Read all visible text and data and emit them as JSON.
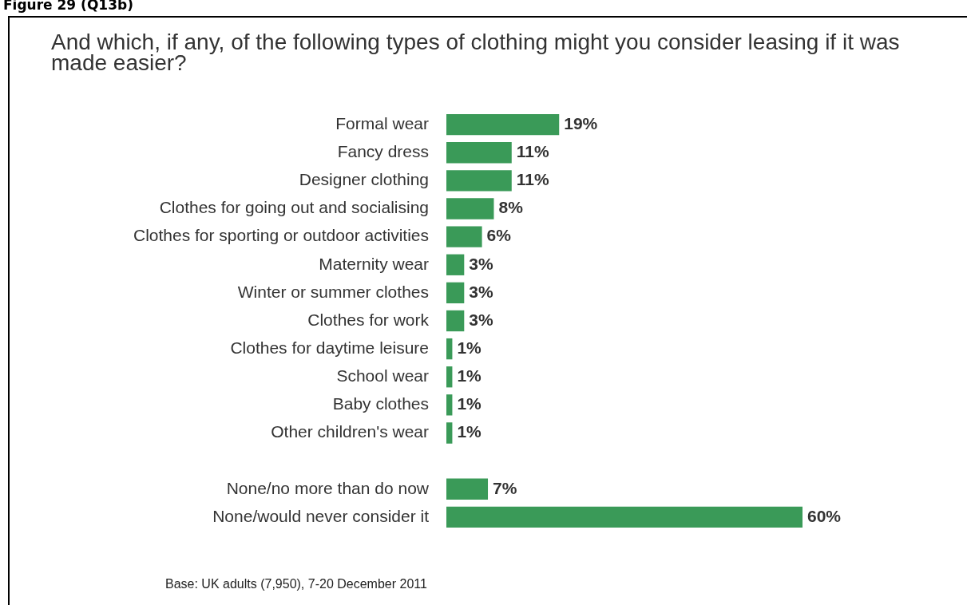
{
  "chart_data": {
    "type": "bar",
    "orientation": "horizontal",
    "title": "And which, if any, of the following types of clothing might you consider leasing if it was made easier?",
    "categories": [
      "Formal wear",
      "Fancy dress",
      "Designer clothing",
      "Clothes for going out and socialising",
      "Clothes for sporting or outdoor activities",
      "Maternity wear",
      "Winter or summer clothes",
      "Clothes for work",
      "Clothes for daytime leisure",
      "School wear",
      "Baby clothes",
      "Other children's wear",
      null,
      "None/no more than do now",
      "None/would never consider it"
    ],
    "values": [
      19,
      11,
      11,
      8,
      6,
      3,
      3,
      3,
      1,
      1,
      1,
      1,
      null,
      7,
      60
    ],
    "value_labels": [
      "19%",
      "11%",
      "11%",
      "8%",
      "6%",
      "3%",
      "3%",
      "3%",
      "1%",
      "1%",
      "1%",
      "1%",
      null,
      "7%",
      "60%"
    ],
    "color": "#3a9a58",
    "tick_labels": "y",
    "grid": false,
    "legend": false,
    "annotations": [
      "Figure 29 (Q13b)",
      "Base: UK adults (7,950), 7-20 December 2011"
    ]
  }
}
